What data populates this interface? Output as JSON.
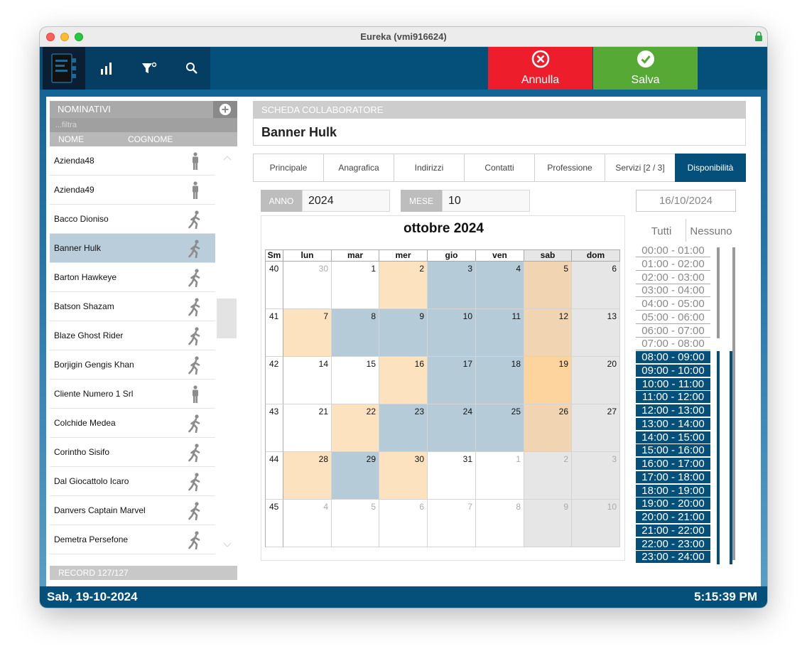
{
  "window": {
    "title": "Eureka (vmi916624)"
  },
  "toolbar": {
    "cancel_label": "Annulla",
    "save_label": "Salva"
  },
  "left_panel": {
    "title": "NOMINATIVI",
    "filter_placeholder": "...filtra",
    "col_name": "NOME",
    "col_surname": "COGNOME",
    "items": [
      {
        "name": "Azienda48",
        "icon": "standing-person-icon"
      },
      {
        "name": "Azienda49",
        "icon": "standing-person-icon"
      },
      {
        "name": "Bacco Dioniso",
        "icon": "walking-person-icon"
      },
      {
        "name": "Banner Hulk",
        "icon": "walking-person-icon",
        "selected": true
      },
      {
        "name": "Barton Hawkeye",
        "icon": "walking-person-icon"
      },
      {
        "name": "Batson Shazam",
        "icon": "walking-person-icon"
      },
      {
        "name": "Blaze Ghost Rider",
        "icon": "walking-person-icon"
      },
      {
        "name": "Borjigin Gengis Khan",
        "icon": "walking-person-icon"
      },
      {
        "name": "Cliente Numero 1 Srl",
        "icon": "standing-person-icon"
      },
      {
        "name": "Colchide Medea",
        "icon": "walking-person-icon"
      },
      {
        "name": "Corintho Sisifo",
        "icon": "walking-person-icon"
      },
      {
        "name": "Dal Giocattolo Icaro",
        "icon": "walking-person-icon"
      },
      {
        "name": "Danvers Captain Marvel",
        "icon": "walking-person-icon"
      },
      {
        "name": "Demetra Persefone",
        "icon": "walking-person-icon"
      }
    ],
    "record_label": "RECORD 127/127"
  },
  "right_panel": {
    "title": "SCHEDA COLLABORATORE",
    "name": "Banner Hulk",
    "tabs": [
      {
        "label": "Principale"
      },
      {
        "label": "Anagrafica"
      },
      {
        "label": "Indirizzi"
      },
      {
        "label": "Contatti"
      },
      {
        "label": "Professione"
      },
      {
        "label": "Servizi [2 / 3]"
      },
      {
        "label": "Disponibilità",
        "active": true
      }
    ],
    "year_label": "ANNO",
    "year_value": "2024",
    "month_label": "MESE",
    "month_value": "10",
    "selected_date": "16/10/2024"
  },
  "calendar": {
    "title": "ottobre 2024",
    "headers": [
      "Sm",
      "lun",
      "mar",
      "mer",
      "gio",
      "ven",
      "sab",
      "dom"
    ],
    "weeks": [
      {
        "wk": "40",
        "days": [
          {
            "d": "30",
            "out": true,
            "c": "white"
          },
          {
            "d": "1",
            "c": "white"
          },
          {
            "d": "2",
            "c": "peach"
          },
          {
            "d": "3",
            "c": "blue"
          },
          {
            "d": "4",
            "c": "blue"
          },
          {
            "d": "5",
            "c": "tan"
          },
          {
            "d": "6",
            "c": "gray"
          }
        ]
      },
      {
        "wk": "41",
        "days": [
          {
            "d": "7",
            "c": "peach"
          },
          {
            "d": "8",
            "c": "blue"
          },
          {
            "d": "9",
            "c": "blue"
          },
          {
            "d": "10",
            "c": "blue"
          },
          {
            "d": "11",
            "c": "blue"
          },
          {
            "d": "12",
            "c": "tan"
          },
          {
            "d": "13",
            "c": "gray"
          }
        ]
      },
      {
        "wk": "42",
        "days": [
          {
            "d": "14",
            "c": "white"
          },
          {
            "d": "15",
            "c": "white"
          },
          {
            "d": "16",
            "c": "peach"
          },
          {
            "d": "17",
            "c": "blue"
          },
          {
            "d": "18",
            "c": "blue"
          },
          {
            "d": "19",
            "c": "orange"
          },
          {
            "d": "20",
            "c": "gray"
          }
        ]
      },
      {
        "wk": "43",
        "days": [
          {
            "d": "21",
            "c": "white"
          },
          {
            "d": "22",
            "c": "peach"
          },
          {
            "d": "23",
            "c": "blue"
          },
          {
            "d": "24",
            "c": "blue"
          },
          {
            "d": "25",
            "c": "blue"
          },
          {
            "d": "26",
            "c": "tan"
          },
          {
            "d": "27",
            "c": "gray"
          }
        ]
      },
      {
        "wk": "44",
        "days": [
          {
            "d": "28",
            "c": "peach"
          },
          {
            "d": "29",
            "c": "blue"
          },
          {
            "d": "30",
            "c": "peach"
          },
          {
            "d": "31",
            "c": "white"
          },
          {
            "d": "1",
            "out": true,
            "c": "white"
          },
          {
            "d": "2",
            "out": true,
            "c": "gray"
          },
          {
            "d": "3",
            "out": true,
            "c": "gray"
          }
        ]
      },
      {
        "wk": "45",
        "days": [
          {
            "d": "4",
            "out": true,
            "c": "white"
          },
          {
            "d": "5",
            "out": true,
            "c": "white"
          },
          {
            "d": "6",
            "out": true,
            "c": "white"
          },
          {
            "d": "7",
            "out": true,
            "c": "white"
          },
          {
            "d": "8",
            "out": true,
            "c": "white"
          },
          {
            "d": "9",
            "out": true,
            "c": "gray"
          },
          {
            "d": "10",
            "out": true,
            "c": "gray"
          }
        ]
      }
    ],
    "colors": {
      "white": "#ffffff",
      "peach": "#fde2c0",
      "blue": "#b5ccd8",
      "tan": "#f1d4b2",
      "orange": "#fed49e",
      "gray": "#e6e6e6"
    }
  },
  "timeslots": {
    "all_label": "Tutti",
    "none_label": "Nessuno",
    "slots": [
      {
        "label": "00:00 - 01:00",
        "on": false
      },
      {
        "label": "01:00 - 02:00",
        "on": false
      },
      {
        "label": "02:00 - 03:00",
        "on": false
      },
      {
        "label": "03:00 - 04:00",
        "on": false
      },
      {
        "label": "04:00 - 05:00",
        "on": false
      },
      {
        "label": "05:00 - 06:00",
        "on": false
      },
      {
        "label": "06:00 - 07:00",
        "on": false
      },
      {
        "label": "07:00 - 08:00",
        "on": false
      },
      {
        "label": "08:00 - 09:00",
        "on": true
      },
      {
        "label": "09:00 - 10:00",
        "on": true
      },
      {
        "label": "10:00 - 11:00",
        "on": true
      },
      {
        "label": "11:00 - 12:00",
        "on": true
      },
      {
        "label": "12:00 - 13:00",
        "on": true
      },
      {
        "label": "13:00 - 14:00",
        "on": true
      },
      {
        "label": "14:00 - 15:00",
        "on": true
      },
      {
        "label": "15:00 - 16:00",
        "on": true
      },
      {
        "label": "16:00 - 17:00",
        "on": true
      },
      {
        "label": "17:00 - 18:00",
        "on": true
      },
      {
        "label": "18:00 - 19:00",
        "on": true
      },
      {
        "label": "19:00 - 20:00",
        "on": true
      },
      {
        "label": "20:00 - 21:00",
        "on": true
      },
      {
        "label": "21:00 - 22:00",
        "on": true
      },
      {
        "label": "22:00 - 23:00",
        "on": true
      },
      {
        "label": "23:00 - 24:00",
        "on": true
      }
    ]
  },
  "status": {
    "date": "Sab, 19-10-2024",
    "time": "5:15:39 PM"
  },
  "theme": {
    "primary": "#05507a",
    "cancel": "#ee1d2b",
    "save": "#57a935",
    "selected_row": "#b9cdda"
  }
}
